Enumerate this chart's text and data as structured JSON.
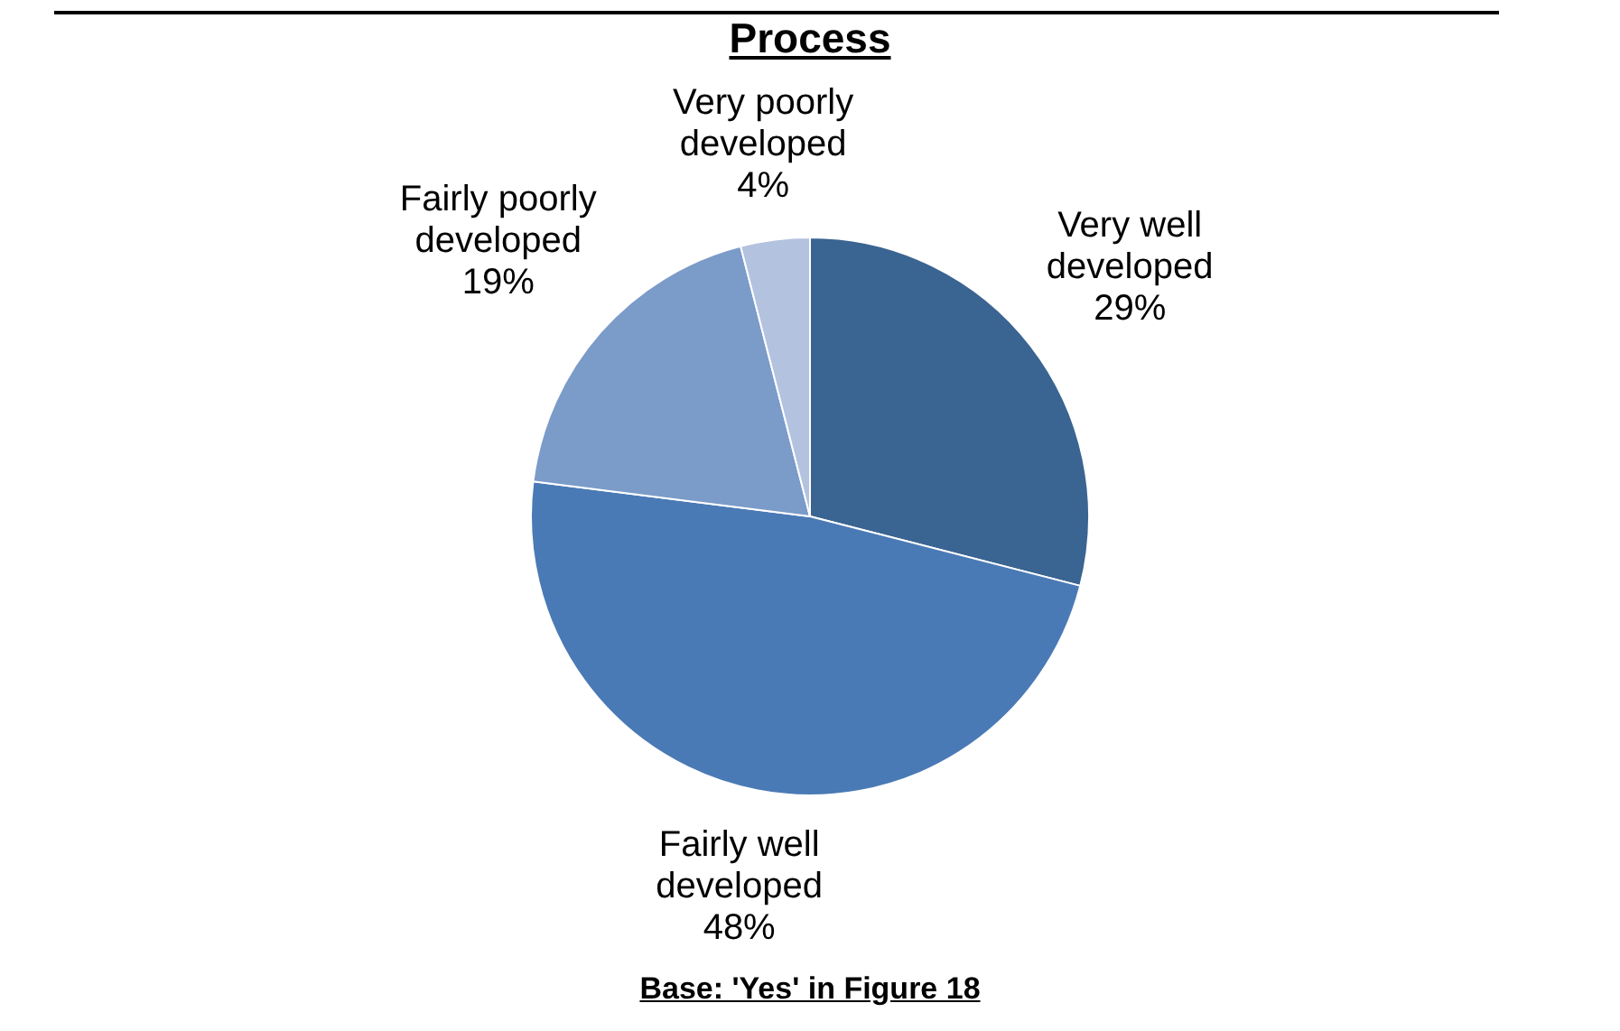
{
  "chart_data": {
    "type": "pie",
    "title": "Process",
    "categories": [
      "Very well developed",
      "Fairly well developed",
      "Fairly poorly developed",
      "Very poorly developed"
    ],
    "values": [
      29,
      48,
      19,
      4
    ],
    "colors": [
      "#3a6491",
      "#4a7ab5",
      "#7b9bc9",
      "#b3c2df"
    ],
    "value_labels": [
      "29%",
      "48%",
      "19%",
      "4%"
    ],
    "legend": false,
    "annotations": [
      "Base:  'Yes' in Figure 18"
    ]
  }
}
